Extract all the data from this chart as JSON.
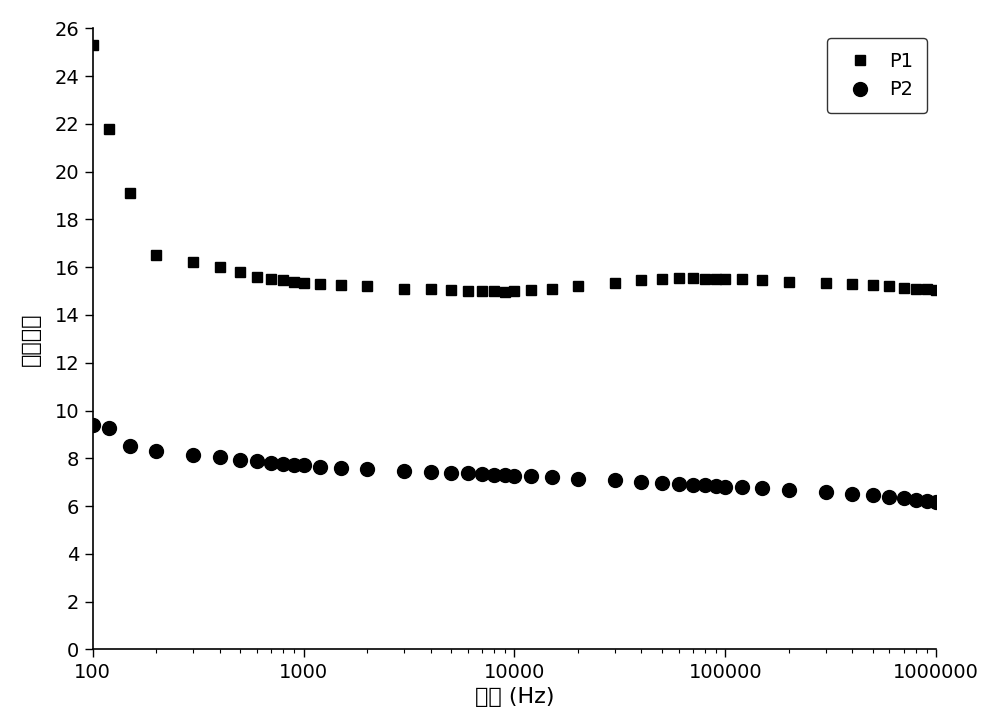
{
  "title": "",
  "xlabel": "频率 (Hz)",
  "ylabel": "介电常数",
  "ylim": [
    0,
    26
  ],
  "yticks": [
    0,
    2,
    4,
    6,
    8,
    10,
    12,
    14,
    16,
    18,
    20,
    22,
    24,
    26
  ],
  "xlog_min": 100,
  "xlog_max": 1000000,
  "legend_labels": [
    "P1",
    "P2"
  ],
  "marker_P1": "s",
  "marker_P2": "o",
  "color": "#000000",
  "marker_size_P1": 7,
  "marker_size_P2": 10,
  "P1_x": [
    100,
    120,
    150,
    200,
    300,
    400,
    500,
    600,
    700,
    800,
    900,
    1000,
    1200,
    1500,
    2000,
    3000,
    4000,
    5000,
    6000,
    7000,
    8000,
    9000,
    10000,
    12000,
    15000,
    20000,
    30000,
    40000,
    50000,
    60000,
    70000,
    80000,
    90000,
    100000,
    120000,
    150000,
    200000,
    300000,
    400000,
    500000,
    600000,
    700000,
    800000,
    900000,
    1000000
  ],
  "P1_y": [
    25.3,
    21.8,
    19.1,
    16.5,
    16.2,
    16.0,
    15.8,
    15.6,
    15.5,
    15.45,
    15.4,
    15.35,
    15.3,
    15.25,
    15.2,
    15.1,
    15.1,
    15.05,
    15.0,
    15.0,
    15.0,
    14.95,
    15.0,
    15.05,
    15.1,
    15.2,
    15.35,
    15.45,
    15.5,
    15.55,
    15.55,
    15.5,
    15.5,
    15.5,
    15.5,
    15.45,
    15.4,
    15.35,
    15.3,
    15.25,
    15.2,
    15.15,
    15.1,
    15.1,
    15.05
  ],
  "P2_x": [
    100,
    120,
    150,
    200,
    300,
    400,
    500,
    600,
    700,
    800,
    900,
    1000,
    1200,
    1500,
    2000,
    3000,
    4000,
    5000,
    6000,
    7000,
    8000,
    9000,
    10000,
    12000,
    15000,
    20000,
    30000,
    40000,
    50000,
    60000,
    70000,
    80000,
    90000,
    100000,
    120000,
    150000,
    200000,
    300000,
    400000,
    500000,
    600000,
    700000,
    800000,
    900000,
    1000000
  ],
  "P2_y": [
    9.4,
    9.25,
    8.5,
    8.3,
    8.15,
    8.05,
    7.95,
    7.87,
    7.82,
    7.78,
    7.74,
    7.7,
    7.65,
    7.6,
    7.55,
    7.48,
    7.43,
    7.4,
    7.37,
    7.34,
    7.32,
    7.3,
    7.28,
    7.24,
    7.2,
    7.15,
    7.08,
    7.02,
    6.97,
    6.93,
    6.9,
    6.87,
    6.84,
    6.82,
    6.78,
    6.74,
    6.68,
    6.6,
    6.52,
    6.45,
    6.38,
    6.32,
    6.27,
    6.22,
    6.18
  ],
  "legend_fontsize": 14,
  "axis_fontsize": 16,
  "tick_fontsize": 14,
  "background_color": "#ffffff",
  "fig_width": 10.0,
  "fig_height": 7.28
}
